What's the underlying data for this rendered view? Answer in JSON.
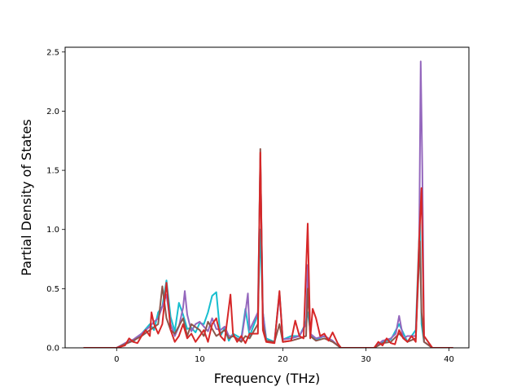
{
  "chart_data": {
    "type": "line",
    "title": "",
    "xlabel": "Frequency (THz)",
    "ylabel": "Partial Density of States",
    "xlim": [
      -6.2,
      42.4
    ],
    "ylim": [
      0,
      2.54
    ],
    "xticks": [
      0,
      10,
      20,
      30,
      40
    ],
    "yticks": [
      0.0,
      0.5,
      1.0,
      1.5,
      2.0,
      2.5
    ],
    "xtick_labels": [
      "0",
      "10",
      "20",
      "30",
      "40"
    ],
    "ytick_labels": [
      "0.0",
      "0.5",
      "1.0",
      "1.5",
      "2.0",
      "2.5"
    ],
    "grid": false,
    "legend": "none",
    "series": [
      {
        "color": "#17becf",
        "x": [
          -4,
          0,
          1,
          1.5,
          2,
          2.5,
          3,
          3.5,
          4,
          4.5,
          5,
          5.5,
          6,
          6.5,
          7,
          7.5,
          8,
          8.5,
          9,
          9.5,
          10,
          10.5,
          11,
          11.5,
          12,
          12.5,
          13,
          13.5,
          14,
          15,
          15.5,
          16,
          17,
          17.3,
          17.6,
          18,
          19,
          19.6,
          20,
          21,
          22,
          22.7,
          23,
          23.4,
          24,
          25,
          26,
          26.6,
          27,
          31,
          32,
          33,
          34,
          35,
          36,
          36.5,
          36.7,
          37,
          38,
          40.5
        ],
        "y": [
          0,
          0,
          0.03,
          0.06,
          0.05,
          0.09,
          0.12,
          0.16,
          0.2,
          0.15,
          0.3,
          0.35,
          0.57,
          0.26,
          0.14,
          0.38,
          0.28,
          0.16,
          0.17,
          0.13,
          0.21,
          0.2,
          0.3,
          0.44,
          0.47,
          0.1,
          0.17,
          0.06,
          0.12,
          0.08,
          0.33,
          0.1,
          0.28,
          1.0,
          0.3,
          0.08,
          0.05,
          0.47,
          0.07,
          0.1,
          0.1,
          0.2,
          0.3,
          0.1,
          0.07,
          0.1,
          0.06,
          0.02,
          0,
          0,
          0.05,
          0.07,
          0.2,
          0.05,
          0.15,
          1.1,
          0.2,
          0.05,
          0,
          0
        ]
      },
      {
        "color": "#9467bd",
        "x": [
          -4,
          0,
          1,
          2,
          3,
          4,
          4.5,
          5,
          5.5,
          6,
          6.5,
          7,
          7.5,
          8,
          8.2,
          8.5,
          9,
          9.5,
          10,
          10.5,
          11,
          11.5,
          12,
          12.5,
          13,
          13.5,
          14,
          15,
          15.5,
          15.8,
          16,
          17,
          17.3,
          17.6,
          18,
          19,
          19.6,
          20,
          21,
          22,
          22.8,
          23,
          23.3,
          24,
          25,
          26,
          26.6,
          27,
          31,
          32,
          33,
          33.6,
          34,
          34.5,
          35,
          36,
          36.4,
          36.6,
          36.8,
          37,
          38,
          40.5
        ],
        "y": [
          0,
          0,
          0.04,
          0.07,
          0.12,
          0.18,
          0.22,
          0.25,
          0.35,
          0.45,
          0.2,
          0.1,
          0.18,
          0.34,
          0.48,
          0.28,
          0.14,
          0.2,
          0.22,
          0.18,
          0.14,
          0.25,
          0.16,
          0.15,
          0.18,
          0.1,
          0.1,
          0.06,
          0.3,
          0.46,
          0.15,
          0.3,
          1.6,
          0.3,
          0.06,
          0.05,
          0.45,
          0.07,
          0.08,
          0.1,
          0.2,
          0.7,
          0.12,
          0.08,
          0.1,
          0.06,
          0.02,
          0,
          0,
          0.06,
          0.08,
          0.12,
          0.27,
          0.08,
          0.1,
          0.1,
          0.8,
          2.42,
          1.5,
          0.05,
          0,
          0
        ]
      },
      {
        "color": "#8c564b",
        "x": [
          -4,
          0,
          1,
          2,
          3,
          4,
          5,
          5.5,
          6,
          6.5,
          7,
          8,
          8.5,
          9,
          10,
          10.5,
          11,
          12,
          13,
          13.5,
          14,
          15,
          15.5,
          16,
          17,
          17.3,
          17.6,
          18,
          19,
          19.6,
          20,
          21,
          22,
          22.8,
          23,
          23.3,
          24,
          25,
          26,
          26.6,
          27,
          31,
          32,
          33,
          34,
          35,
          36,
          36.5,
          36.7,
          37,
          38,
          40.5
        ],
        "y": [
          0,
          0,
          0.03,
          0.06,
          0.1,
          0.15,
          0.2,
          0.52,
          0.25,
          0.15,
          0.12,
          0.25,
          0.1,
          0.2,
          0.15,
          0.1,
          0.22,
          0.1,
          0.15,
          0.08,
          0.1,
          0.05,
          0.1,
          0.08,
          0.2,
          1.68,
          0.2,
          0.06,
          0.05,
          0.2,
          0.05,
          0.06,
          0.08,
          0.1,
          0.5,
          0.1,
          0.06,
          0.08,
          0.05,
          0.02,
          0,
          0,
          0.04,
          0.05,
          0.12,
          0.05,
          0.08,
          0.9,
          0.3,
          0.05,
          0,
          0
        ]
      },
      {
        "color": "#d62728",
        "x": [
          -4,
          0,
          1,
          1.5,
          2,
          2.5,
          3,
          3.5,
          4,
          4.2,
          4.5,
          5,
          5.5,
          6,
          6.5,
          7,
          7.5,
          8,
          8.5,
          9,
          9.5,
          10,
          10.5,
          11,
          11.5,
          12,
          12.5,
          13,
          13.7,
          14,
          14.5,
          15,
          15.5,
          16,
          17,
          17.3,
          17.6,
          18,
          19,
          19.6,
          20,
          21,
          21.5,
          22,
          22.5,
          23,
          23.3,
          23.6,
          24,
          24.5,
          25,
          25.5,
          26,
          26.6,
          27,
          31,
          31.5,
          32,
          32.5,
          33,
          33.5,
          34,
          34.5,
          35,
          35.5,
          36,
          36.4,
          36.7,
          37,
          38,
          40.5
        ],
        "y": [
          0,
          0,
          0.02,
          0.08,
          0.05,
          0.04,
          0.1,
          0.15,
          0.1,
          0.3,
          0.2,
          0.12,
          0.2,
          0.55,
          0.15,
          0.05,
          0.1,
          0.2,
          0.08,
          0.12,
          0.05,
          0.1,
          0.15,
          0.05,
          0.2,
          0.25,
          0.1,
          0.06,
          0.45,
          0.12,
          0.05,
          0.1,
          0.04,
          0.12,
          0.12,
          1.65,
          0.15,
          0.05,
          0.04,
          0.48,
          0.05,
          0.06,
          0.23,
          0.1,
          0.08,
          1.05,
          0.08,
          0.33,
          0.25,
          0.1,
          0.12,
          0.06,
          0.13,
          0.04,
          0,
          0,
          0.05,
          0.02,
          0.08,
          0.04,
          0.03,
          0.15,
          0.08,
          0.05,
          0.1,
          0.05,
          0.9,
          1.35,
          0.1,
          0,
          0
        ]
      }
    ]
  }
}
